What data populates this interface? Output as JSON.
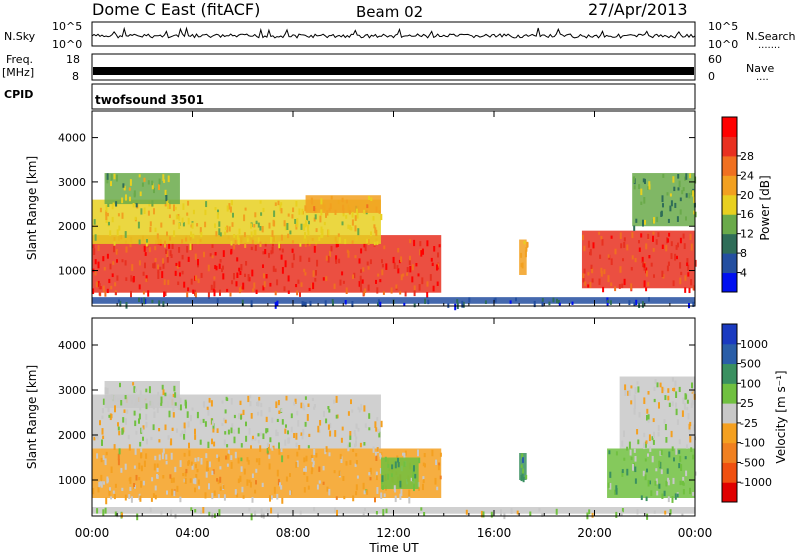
{
  "header": {
    "station": "Dome C East (fitACF)",
    "beam": "Beam 02",
    "date": "27/Apr/2013"
  },
  "noise_panel": {
    "left_label": "N.Sky",
    "right_label": "N.Search",
    "right_dots": ".......",
    "left_ticks": [
      "10^5",
      "10^0"
    ],
    "right_ticks": [
      "10^5",
      "10^0"
    ]
  },
  "freq_panel": {
    "left_label_top": "Freq.",
    "left_label_unit": "[MHz]",
    "right_label": "Nave",
    "right_dots": "....",
    "left_ticks": [
      "18",
      "8"
    ],
    "right_ticks": [
      "60",
      "0"
    ]
  },
  "cpid_panel": {
    "label": "CPID",
    "value": "twofsound 3501"
  },
  "xaxis": {
    "label": "Time UT",
    "ticks": [
      "00:00",
      "04:00",
      "08:00",
      "12:00",
      "16:00",
      "20:00",
      "00:00"
    ]
  },
  "colors": {
    "power_scale": [
      "#0010f0",
      "#244fa0",
      "#2f6d58",
      "#6aaa4a",
      "#e8d020",
      "#f2a020",
      "#f07020",
      "#e83020",
      "#ff0000"
    ],
    "velocity_scale": [
      "#e00000",
      "#f05010",
      "#f08020",
      "#f4a020",
      "#c8c8c8",
      "#70c040",
      "#3a9060",
      "#2a5ea8",
      "#1a3ac0"
    ],
    "brand_frame": "#000000"
  },
  "chart_data": [
    {
      "type": "heatmap",
      "title": "",
      "xlabel": "Time UT",
      "ylabel": "Slant Range [km]",
      "xlim": [
        0,
        24
      ],
      "ylim": [
        200,
        4600
      ],
      "yticks": [
        1000,
        2000,
        3000,
        4000
      ],
      "colorbar": {
        "label": "Power [dB]",
        "ticks": [
          "4",
          "8",
          "12",
          "16",
          "20",
          "24",
          "28"
        ],
        "min": 0,
        "max": 32
      },
      "regions": [
        {
          "t0": 0.0,
          "t1": 13.9,
          "r0": 500,
          "r1": 1800,
          "value": 27
        },
        {
          "t0": 0.0,
          "t1": 11.5,
          "r0": 1600,
          "r1": 2600,
          "value": 17
        },
        {
          "t0": 0.5,
          "t1": 3.5,
          "r0": 2500,
          "r1": 3200,
          "value": 14
        },
        {
          "t0": 8.5,
          "t1": 11.5,
          "r0": 2300,
          "r1": 2700,
          "value": 18
        },
        {
          "t0": 17.0,
          "t1": 17.3,
          "r0": 900,
          "r1": 1700,
          "value": 20
        },
        {
          "t0": 19.5,
          "t1": 24.0,
          "r0": 600,
          "r1": 1900,
          "value": 26
        },
        {
          "t0": 21.5,
          "t1": 24.0,
          "r0": 2000,
          "r1": 3200,
          "value": 12
        },
        {
          "t0": 0.0,
          "t1": 24.0,
          "r0": 250,
          "r1": 400,
          "value": 6
        }
      ]
    },
    {
      "type": "heatmap",
      "title": "",
      "xlabel": "Time UT",
      "ylabel": "Slant Range [km]",
      "xlim": [
        0,
        24
      ],
      "ylim": [
        200,
        4600
      ],
      "yticks": [
        1000,
        2000,
        3000,
        4000
      ],
      "colorbar": {
        "label": "Velocity [m s⁻¹]",
        "ticks": [
          "-1000",
          "-500",
          "-100",
          "-25",
          "25",
          "100",
          "500",
          "1000"
        ],
        "min": -1200,
        "max": 1200
      },
      "regions": [
        {
          "t0": 0.0,
          "t1": 13.9,
          "r0": 600,
          "r1": 1700,
          "value": -150
        },
        {
          "t0": 0.0,
          "t1": 11.5,
          "r0": 1700,
          "r1": 2900,
          "value": 0
        },
        {
          "t0": 0.5,
          "t1": 3.5,
          "r0": 2600,
          "r1": 3200,
          "value": 60
        },
        {
          "t0": 11.5,
          "t1": 13.0,
          "r0": 800,
          "r1": 1500,
          "value": 300
        },
        {
          "t0": 17.0,
          "t1": 17.3,
          "r0": 1000,
          "r1": 1600,
          "value": 500
        },
        {
          "t0": 20.5,
          "t1": 24.0,
          "r0": 600,
          "r1": 1700,
          "value": 250
        },
        {
          "t0": 21.0,
          "t1": 24.0,
          "r0": 1700,
          "r1": 3300,
          "value": 0
        },
        {
          "t0": 0.0,
          "t1": 24.0,
          "r0": 250,
          "r1": 400,
          "value": 40
        }
      ]
    }
  ]
}
